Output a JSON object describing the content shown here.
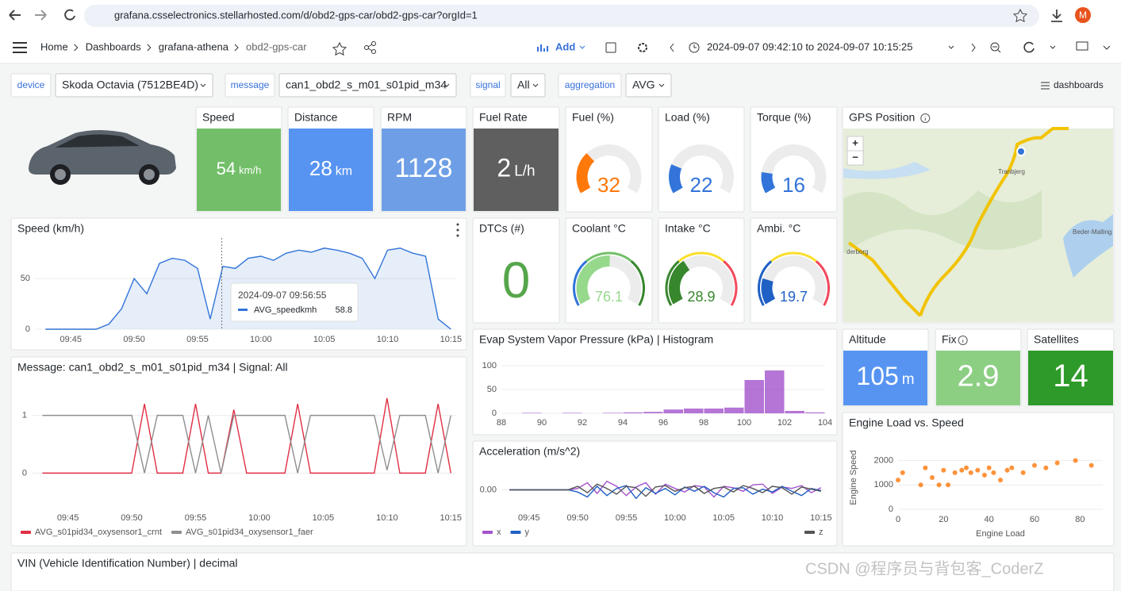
{
  "browser": {
    "url": "grafana.csselectronics.stellarhosted.com/d/obd2-gps-car/obd2-gps-car?orgId=1",
    "avatar": "M"
  },
  "nav": {
    "breadcrumbs": [
      "Home",
      "Dashboards",
      "grafana-athena",
      "obd2-gps-car"
    ],
    "add": "Add",
    "time_range": "2024-09-07 09:42:10 to 2024-09-07 10:15:25"
  },
  "variables": [
    {
      "label": "device",
      "value": "Skoda Octavia (7512BE4D)"
    },
    {
      "label": "message",
      "value": "can1_obd2_s_m01_s01pid_m34"
    },
    {
      "label": "signal",
      "value": "All"
    },
    {
      "label": "aggregation",
      "value": "AVG"
    }
  ],
  "dashboards_link": "dashboards",
  "stats": [
    {
      "title": "Speed",
      "value": 54,
      "unit": "km/h",
      "color": "#73bf69",
      "mode": "background"
    },
    {
      "title": "Distance",
      "value": 28,
      "unit": "km",
      "color": "#5794f2",
      "mode": "background"
    },
    {
      "title": "RPM",
      "value": 1128,
      "color": "#6e9fe6",
      "mode": "background"
    },
    {
      "title": "Fuel Rate",
      "value": 2,
      "unit": "L/h",
      "color": "#5f5f5f",
      "mode": "background"
    },
    {
      "title": "DTCs (#)",
      "value": 0,
      "color": "#56a64b",
      "mode": "text"
    },
    {
      "title": "Altitude",
      "value": 105,
      "unit": "m",
      "color": "#5794f2",
      "mode": "background"
    },
    {
      "title": "Fix",
      "value": 2.9,
      "color": "#8ccf83",
      "mode": "background",
      "info": true
    },
    {
      "title": "Satellites",
      "value": 14,
      "color": "#2e9a2a",
      "mode": "background"
    }
  ],
  "gauges": [
    {
      "title": "Fuel (%)",
      "value": 32,
      "min": 0,
      "max": 100,
      "color": "#ff780a"
    },
    {
      "title": "Load (%)",
      "value": 22,
      "min": 0,
      "max": 100,
      "color": "#3274d9"
    },
    {
      "title": "Torque (%)",
      "value": 16,
      "min": 0,
      "max": 100,
      "color": "#3274d9"
    },
    {
      "title": "Coolant °C",
      "value": 76.1,
      "min": 0,
      "max": 150,
      "color": "#96d98d",
      "threshold_colors": [
        "#3274d9",
        "#73bf69",
        "#37872d"
      ]
    },
    {
      "title": "Intake °C",
      "value": 28.9,
      "min": 0,
      "max": 80,
      "color": "#37872d",
      "threshold_colors": [
        "#37872d",
        "#fade2a",
        "#f2495c"
      ]
    },
    {
      "title": "Ambi. °C",
      "value": 19.7,
      "min": 0,
      "max": 100,
      "color": "#1f60c4",
      "threshold_colors": [
        "#1f60c4",
        "#fade2a",
        "#f2495c"
      ]
    }
  ],
  "map": {
    "title": "GPS Position",
    "info": true,
    "zoom": [
      "+",
      "−"
    ],
    "labels": [
      "Tranbjerg",
      "Beder-Malling",
      "derborg"
    ]
  },
  "vin": "VIN (Vehicle Identification Number) | decimal",
  "watermark": "CSDN @程序员与背包客_CoderZ",
  "chart_data": [
    {
      "type": "line",
      "title": "Speed (km/h)",
      "fill": true,
      "x": [
        "09:43",
        "09:44",
        "09:45",
        "09:46",
        "09:47",
        "09:48",
        "09:49",
        "09:50",
        "09:51",
        "09:52",
        "09:53",
        "09:54",
        "09:55",
        "09:56",
        "09:57",
        "09:58",
        "09:59",
        "10:00",
        "10:01",
        "10:02",
        "10:03",
        "10:04",
        "10:05",
        "10:06",
        "10:07",
        "10:08",
        "10:09",
        "10:10",
        "10:11",
        "10:12",
        "10:13",
        "10:14",
        "10:15"
      ],
      "series": [
        {
          "name": "AVG_speedkmh",
          "color": "#3274d9",
          "values": [
            0,
            0,
            0,
            0,
            0,
            5,
            20,
            50,
            35,
            65,
            70,
            68,
            60,
            10,
            62,
            60,
            70,
            72,
            68,
            75,
            78,
            76,
            80,
            78,
            75,
            70,
            50,
            78,
            80,
            75,
            72,
            10,
            0
          ]
        }
      ],
      "xlim": [
        "09:42:10",
        "10:15:25"
      ],
      "xticks": [
        "09:45",
        "09:50",
        "09:55",
        "10:00",
        "10:05",
        "10:10",
        "10:15"
      ],
      "ylim": [
        0,
        90
      ],
      "yticks": [
        0,
        50
      ],
      "grid": true,
      "tooltip": {
        "time": "2024-09-07 09:56:55",
        "name": "AVG_speedkmh",
        "value": 58.8
      }
    },
    {
      "type": "line",
      "title": "Message: can1_obd2_s_m01_s01pid_m34 | Signal: All",
      "x": [
        "09:43",
        "09:44",
        "09:45",
        "09:46",
        "09:47",
        "09:48",
        "09:49",
        "09:50",
        "09:51",
        "09:52",
        "09:53",
        "09:54",
        "09:55",
        "09:56",
        "09:57",
        "09:58",
        "09:59",
        "10:00",
        "10:01",
        "10:02",
        "10:03",
        "10:04",
        "10:05",
        "10:06",
        "10:07",
        "10:08",
        "10:09",
        "10:10",
        "10:11",
        "10:12",
        "10:13",
        "10:14",
        "10:15"
      ],
      "series": [
        {
          "name": "AVG_s01pid34_oxysensor1_crnt",
          "color": "#e02f44",
          "values": [
            0,
            0,
            0,
            0,
            0,
            0,
            0,
            0,
            1.2,
            0,
            0,
            0,
            1.2,
            0,
            0,
            1.1,
            0,
            0,
            0,
            0,
            1.2,
            0,
            0,
            0,
            0,
            0,
            0,
            1.3,
            0,
            0,
            0,
            1.2,
            0
          ]
        },
        {
          "name": "AVG_s01pid34_oxysensor1_faer",
          "color": "#8e8e8e",
          "values": [
            1,
            1,
            1,
            1,
            1,
            1,
            1,
            1,
            0,
            1,
            1,
            1,
            0,
            1,
            0,
            1,
            1,
            1,
            1,
            1,
            0,
            1,
            1,
            1,
            1,
            1,
            1,
            0.05,
            1,
            1,
            1,
            0,
            1
          ]
        }
      ],
      "xlim": [
        "09:42:10",
        "10:15:25"
      ],
      "xticks": [
        "09:45",
        "09:50",
        "09:55",
        "10:00",
        "10:05",
        "10:10",
        "10:15"
      ],
      "ylim": [
        -0.6,
        1.6
      ],
      "yticks": [
        0,
        1
      ],
      "grid": true
    },
    {
      "type": "histogram",
      "title": "Evap System Vapor Pressure (kPa) | Histogram",
      "color": "#a352cc",
      "bins": [
        88,
        89,
        90,
        91,
        92,
        93,
        94,
        95,
        96,
        97,
        98,
        99,
        100,
        101,
        102,
        103,
        104
      ],
      "values": [
        0,
        1,
        0,
        1,
        0,
        1,
        2,
        3,
        8,
        10,
        10,
        12,
        70,
        90,
        5,
        2
      ],
      "xlim": [
        88,
        104
      ],
      "xticks": [
        88,
        90,
        92,
        94,
        96,
        98,
        100,
        102,
        104
      ],
      "ylim": [
        0,
        110
      ],
      "yticks": [
        0,
        50,
        100
      ],
      "grid": true
    },
    {
      "type": "line",
      "title": "Acceleration (m/s^2)",
      "x": [
        "09:43",
        "09:44",
        "09:45",
        "09:46",
        "09:47",
        "09:48",
        "09:49",
        "09:50",
        "09:51",
        "09:52",
        "09:53",
        "09:54",
        "09:55",
        "09:56",
        "09:57",
        "09:58",
        "09:59",
        "10:00",
        "10:01",
        "10:02",
        "10:03",
        "10:04",
        "10:05",
        "10:06",
        "10:07",
        "10:08",
        "10:09",
        "10:10",
        "10:11",
        "10:12",
        "10:13",
        "10:14",
        "10:15"
      ],
      "series": [
        {
          "name": "x",
          "color": "#a352cc",
          "values": [
            0,
            0,
            0,
            0,
            0,
            0,
            0,
            0.02,
            0.1,
            -0.05,
            0.12,
            0.05,
            -0.08,
            0.04,
            0.1,
            -0.06,
            0.08,
            0.02,
            -0.03,
            0.06,
            0.04,
            -0.1,
            0.05,
            0.03,
            -0.02,
            0.07,
            0.08,
            -0.05,
            0.04,
            0.02,
            0.06,
            -0.04,
            0.03
          ]
        },
        {
          "name": "y",
          "color": "#1f60c4",
          "values": [
            0,
            0,
            0,
            0,
            0,
            0,
            0,
            -0.03,
            -0.1,
            0.05,
            -0.08,
            0.02,
            0.06,
            -0.12,
            0.03,
            -0.05,
            0.02,
            -0.07,
            0.04,
            -0.02,
            0.05,
            -0.04,
            -0.1,
            0.02,
            0.03,
            -0.06,
            0.01,
            -0.03,
            0.05,
            -0.02,
            -0.08,
            0.02,
            -0.01
          ]
        },
        {
          "name": "z",
          "color": "#555555",
          "values": [
            0,
            0,
            0,
            0,
            0,
            0,
            0,
            0.05,
            -0.04,
            0.08,
            0.02,
            -0.06,
            0.05,
            0.03,
            -0.09,
            0.04,
            0.06,
            -0.02,
            0.03,
            0.05,
            -0.05,
            0.02,
            0.04,
            -0.03,
            0.06,
            0.02,
            -0.04,
            0.05,
            0.03,
            -0.06,
            0.04,
            0.01,
            -0.02
          ]
        }
      ],
      "xlim": [
        "09:42:10",
        "10:15:25"
      ],
      "xticks": [
        "09:45",
        "09:50",
        "09:55",
        "10:00",
        "10:05",
        "10:10",
        "10:15"
      ],
      "ylim": [
        -0.25,
        0.25
      ],
      "yticks": [
        {
          "value": 0,
          "label": "0.00"
        }
      ],
      "grid": true
    },
    {
      "type": "scatter",
      "title": "Engine Load vs. Speed",
      "color": "#ff780a",
      "x_label": "Engine Load",
      "y_label": "Engine Speed",
      "x": [
        0,
        2,
        10,
        12,
        15,
        18,
        20,
        22,
        25,
        28,
        30,
        32,
        35,
        38,
        40,
        42,
        45,
        48,
        50,
        55,
        60,
        65,
        70,
        78,
        85
      ],
      "values": [
        1200,
        1500,
        1000,
        1700,
        1300,
        1000,
        1600,
        1000,
        1500,
        1600,
        1700,
        1500,
        1600,
        1400,
        1700,
        1500,
        1200,
        1600,
        1700,
        1500,
        1800,
        1700,
        1900,
        2000,
        1800
      ],
      "xlim": [
        0,
        90
      ],
      "xticks": [
        0,
        20,
        40,
        60,
        80
      ],
      "ylim": [
        0,
        2600
      ],
      "yticks": [
        0,
        1000,
        2000
      ],
      "grid": true
    }
  ]
}
